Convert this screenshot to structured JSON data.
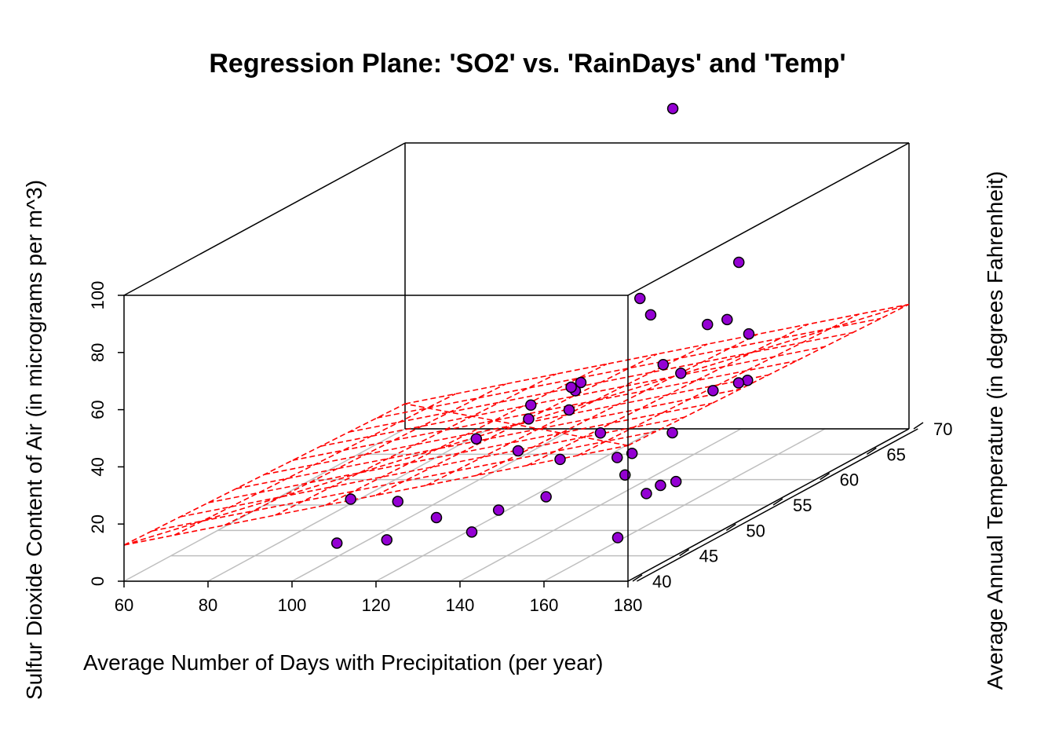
{
  "chart_data": {
    "type": "scatter",
    "subtype": "3d-scatter-with-regression-plane",
    "title": "Regression Plane: 'SO2' vs. 'RainDays' and 'Temp'",
    "xlabel": "Average Number of Days with Precipitation (per year)",
    "ylabel": "Average Annual Temperature (in degrees Fahrenheit)",
    "zlabel": "Sulfur Dioxide Content of Air (in micrograms per m^3)",
    "xlim": [
      60,
      180
    ],
    "ylim": [
      40,
      70
    ],
    "zlim": [
      0,
      100
    ],
    "x_ticks": [
      "60",
      "80",
      "100",
      "120",
      "140",
      "160",
      "180"
    ],
    "y_ticks": [
      "40",
      "45",
      "50",
      "55",
      "60",
      "65",
      "70"
    ],
    "z_ticks": [
      "0",
      "20",
      "40",
      "60",
      "80",
      "100"
    ],
    "grid": "floor",
    "point_fill": "#9400D3",
    "point_stroke": "#000000",
    "plane_color": "#FF0000",
    "box_color": "#000000",
    "grid_color": "#BEBEBE",
    "regression_plane": {
      "intercept": 0.45,
      "coef_x": 0.29,
      "coef_y": -0.13
    },
    "points": [
      {
        "x": 93,
        "y": 49.4,
        "z": 12
      },
      {
        "x": 104,
        "y": 49.5,
        "z": 11
      },
      {
        "x": 119,
        "y": 46.9,
        "z": 10
      },
      {
        "x": 104,
        "y": 43.0,
        "z": 8
      },
      {
        "x": 128,
        "y": 49.5,
        "z": 8
      },
      {
        "x": 124,
        "y": 54.5,
        "z": 31
      },
      {
        "x": 117,
        "y": 42.5,
        "z": 10
      },
      {
        "x": 114,
        "y": 53.4,
        "z": 26
      },
      {
        "x": 135,
        "y": 43.5,
        "z": 11
      },
      {
        "x": 134,
        "y": 55.0,
        "z": 40
      },
      {
        "x": 146,
        "y": 46.5,
        "z": 18
      },
      {
        "x": 131,
        "y": 51.6,
        "z": 41
      },
      {
        "x": 141,
        "y": 51.2,
        "z": 40
      },
      {
        "x": 129,
        "y": 56.8,
        "z": 38
      },
      {
        "x": 138,
        "y": 53.8,
        "z": 45
      },
      {
        "x": 134,
        "y": 61.9,
        "z": 60
      },
      {
        "x": 135,
        "y": 62.6,
        "z": 53
      },
      {
        "x": 146,
        "y": 52.3,
        "z": 30
      },
      {
        "x": 146,
        "y": 59.0,
        "z": 42
      },
      {
        "x": 152,
        "y": 51.4,
        "z": 23
      },
      {
        "x": 164,
        "y": 52.3,
        "z": 13
      },
      {
        "x": 159,
        "y": 57.9,
        "z": 58
      },
      {
        "x": 154,
        "y": 57.3,
        "z": 42
      },
      {
        "x": 158,
        "y": 54.6,
        "z": 26
      },
      {
        "x": 159,
        "y": 49.1,
        "z": 21
      },
      {
        "x": 159,
        "y": 60.0,
        "z": 56
      },
      {
        "x": 167,
        "y": 49.3,
        "z": 17
      },
      {
        "x": 173,
        "y": 55.9,
        "z": 42
      },
      {
        "x": 172,
        "y": 55.4,
        "z": 42
      },
      {
        "x": 163,
        "y": 56.7,
        "z": 37
      },
      {
        "x": 148,
        "y": 47.1,
        "z": 30
      },
      {
        "x": 171,
        "y": 46.0,
        "z": 20
      },
      {
        "x": 160,
        "y": 49.4,
        "z": 28
      },
      {
        "x": 138,
        "y": 47.1,
        "z": 33
      },
      {
        "x": 158,
        "y": 61.7,
        "z": 73
      },
      {
        "x": 178,
        "y": 53.8,
        "z": 62
      },
      {
        "x": 130,
        "y": 67.2,
        "z": 117
      },
      {
        "x": 176,
        "y": 40.7,
        "z": 14
      }
    ]
  }
}
